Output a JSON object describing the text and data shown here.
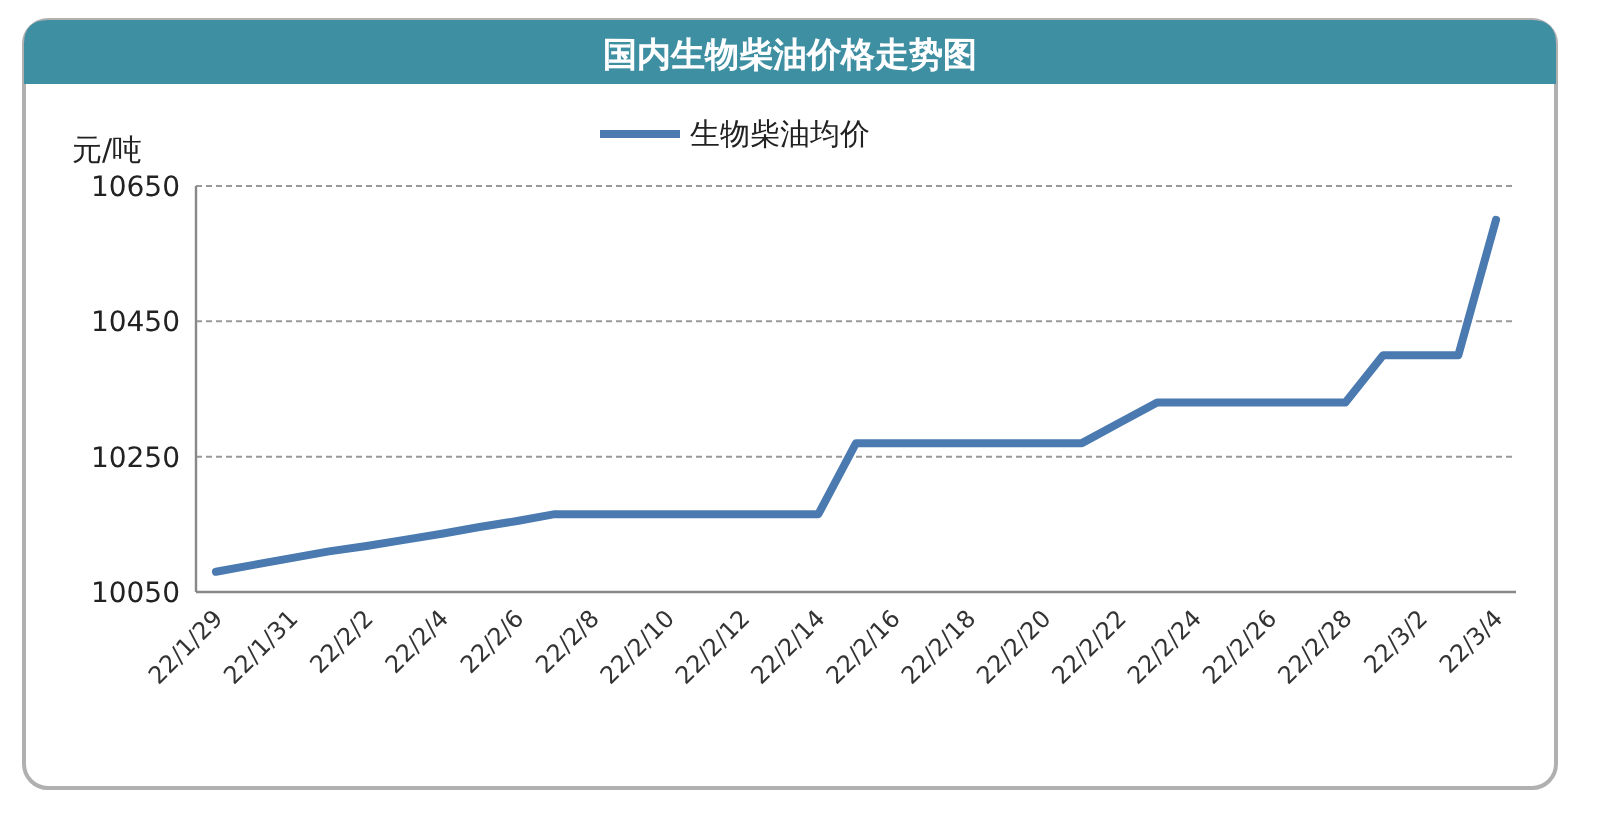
{
  "chart_data": {
    "type": "line",
    "title": "国内生物柴油价格走势图",
    "ylabel": "元/吨",
    "categories": [
      "22/1/29",
      null,
      "22/1/31",
      null,
      "22/2/2",
      null,
      "22/2/4",
      null,
      "22/2/6",
      null,
      "22/2/8",
      null,
      "22/2/10",
      null,
      "22/2/12",
      null,
      "22/2/14",
      null,
      "22/2/16",
      null,
      "22/2/18",
      null,
      "22/2/20",
      null,
      "22/2/22",
      null,
      "22/2/24",
      null,
      "22/2/26",
      null,
      "22/2/28",
      null,
      "22/3/2",
      null,
      "22/3/4"
    ],
    "series": [
      {
        "name": "生物柴油均价",
        "color": "#4a7ab0",
        "values": [
          10080,
          10090,
          10100,
          10110,
          10118,
          10127,
          10136,
          10146,
          10155,
          10165,
          10165,
          10165,
          10165,
          10165,
          10165,
          10165,
          10165,
          10270,
          10270,
          10270,
          10270,
          10270,
          10270,
          10270,
          10300,
          10330,
          10330,
          10330,
          10330,
          10330,
          10330,
          10400,
          10400,
          10400,
          10600
        ]
      }
    ],
    "ylim": [
      10050,
      10650
    ],
    "yticks": [
      10050,
      10250,
      10450,
      10650
    ],
    "grid": "y",
    "legend": "top",
    "marker": "none",
    "line_style": "solid"
  }
}
